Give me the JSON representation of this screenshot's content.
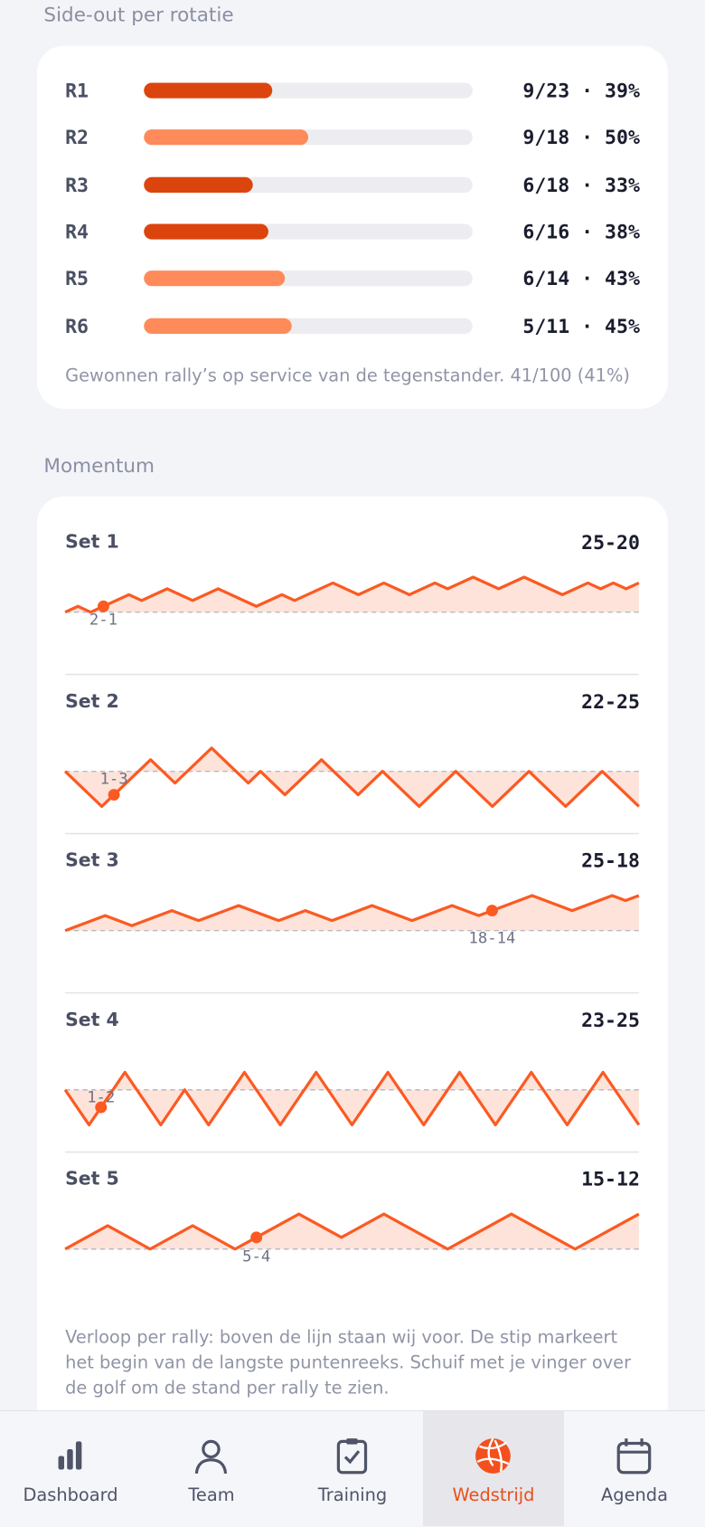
{
  "side_out": {
    "title": "Side-out per rotatie",
    "rows": [
      {
        "label": "R1",
        "value_label": "9/23 · 39%",
        "value": 39,
        "color": "#dc440e"
      },
      {
        "label": "R2",
        "value_label": "9/18 · 50%",
        "value": 50,
        "color": "#ff8a5a"
      },
      {
        "label": "R3",
        "value_label": "6/18 · 33%",
        "value": 33,
        "color": "#dc440e"
      },
      {
        "label": "R4",
        "value_label": "6/16 · 38%",
        "value": 38,
        "color": "#dc440e"
      },
      {
        "label": "R5",
        "value_label": "6/14 · 43%",
        "value": 43,
        "color": "#ff8a5a"
      },
      {
        "label": "R6",
        "value_label": "5/11 · 45%",
        "value": 45,
        "color": "#ff8a5a"
      }
    ],
    "note": "Gewonnen rally’s op service van de tegenstander. 41/100 (41%)"
  },
  "momentum": {
    "title": "Momentum",
    "color": "#fb5a22",
    "fill": "#fde3da",
    "sets": [
      {
        "label": "Set 1",
        "score": "25-20",
        "marker_index": 3,
        "marker_label": "2-1",
        "x": [
          0,
          1,
          2,
          3,
          4,
          5,
          6,
          8,
          10,
          12,
          15,
          17,
          18,
          21,
          23,
          25,
          27,
          29,
          30,
          32,
          34,
          36,
          39,
          41,
          42,
          43,
          44,
          45
        ],
        "values": [
          0,
          1,
          0,
          1,
          2,
          3,
          2,
          4,
          2,
          4,
          1,
          3,
          2,
          5,
          3,
          5,
          3,
          5,
          4,
          6,
          4,
          6,
          3,
          5,
          4,
          5,
          4,
          5
        ]
      },
      {
        "label": "Set 2",
        "score": "22-25",
        "marker_index": 2,
        "marker_label": "1-3",
        "x": [
          0,
          3,
          4,
          7,
          9,
          12,
          15,
          16,
          18,
          21,
          24,
          26,
          29,
          32,
          35,
          38,
          41,
          44,
          47
        ],
        "values": [
          0,
          -3,
          -2,
          1,
          -1,
          2,
          -1,
          0,
          -2,
          1,
          -2,
          0,
          -3,
          0,
          -3,
          0,
          -3,
          0,
          -3
        ]
      },
      {
        "label": "Set 3",
        "score": "25-18",
        "marker_index": 13,
        "marker_label": "18-14",
        "x": [
          0,
          3,
          5,
          8,
          10,
          13,
          16,
          18,
          20,
          23,
          26,
          29,
          31,
          32,
          35,
          38,
          41,
          42,
          43
        ],
        "values": [
          0,
          3,
          1,
          4,
          2,
          5,
          2,
          4,
          2,
          5,
          2,
          5,
          3,
          4,
          7,
          4,
          7,
          6,
          7
        ]
      },
      {
        "label": "Set 4",
        "score": "23-25",
        "marker_index": 2,
        "marker_label": "1-2",
        "x": [
          0,
          2,
          3,
          5,
          8,
          10,
          12,
          15,
          18,
          21,
          24,
          27,
          30,
          33,
          36,
          39,
          42,
          45,
          48
        ],
        "values": [
          0,
          -2,
          -1,
          1,
          -2,
          0,
          -2,
          1,
          -2,
          1,
          -2,
          1,
          -2,
          1,
          -2,
          1,
          -2,
          1,
          -2
        ]
      },
      {
        "label": "Set 5",
        "score": "15-12",
        "marker_index": 5,
        "marker_label": "5-4",
        "x": [
          0,
          2,
          4,
          6,
          8,
          9,
          11,
          13,
          15,
          18,
          21,
          24,
          27
        ],
        "values": [
          0,
          2,
          0,
          2,
          0,
          1,
          3,
          1,
          3,
          0,
          3,
          0,
          3
        ]
      }
    ],
    "note": "Verloop per rally: boven de lijn staan wij voor. De stip markeert het begin van de langste puntenreeks. Schuif met je vinger over de golf om de stand per rally te zien."
  },
  "nav": {
    "items": [
      {
        "label": "Dashboard",
        "active": false
      },
      {
        "label": "Team",
        "active": false
      },
      {
        "label": "Training",
        "active": false
      },
      {
        "label": "Wedstrijd",
        "active": true
      },
      {
        "label": "Agenda",
        "active": false
      }
    ]
  }
}
